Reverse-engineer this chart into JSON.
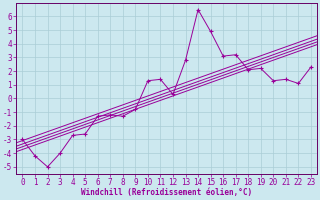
{
  "title": "",
  "xlabel": "Windchill (Refroidissement éolien,°C)",
  "ylabel": "",
  "bg_color": "#cce8ef",
  "grid_color": "#aacdd6",
  "line_color": "#990099",
  "spine_color": "#660066",
  "xlim": [
    -0.5,
    23.5
  ],
  "ylim": [
    -5.5,
    7.0
  ],
  "xticks": [
    0,
    1,
    2,
    3,
    4,
    5,
    6,
    7,
    8,
    9,
    10,
    11,
    12,
    13,
    14,
    15,
    16,
    17,
    18,
    19,
    20,
    21,
    22,
    23
  ],
  "yticks": [
    -5,
    -4,
    -3,
    -2,
    -1,
    0,
    1,
    2,
    3,
    4,
    5,
    6
  ],
  "scatter_x": [
    0,
    1,
    2,
    3,
    4,
    5,
    6,
    7,
    8,
    9,
    10,
    11,
    12,
    13,
    14,
    15,
    16,
    17,
    18,
    19,
    20,
    21,
    22,
    23
  ],
  "scatter_y": [
    -3.0,
    -4.2,
    -5.0,
    -4.0,
    -2.7,
    -2.6,
    -1.3,
    -1.2,
    -1.3,
    -0.8,
    1.3,
    1.4,
    0.3,
    2.8,
    6.5,
    4.9,
    3.1,
    3.2,
    2.1,
    2.2,
    1.3,
    1.4,
    1.1,
    2.3
  ],
  "reg_offsets": [
    0.35,
    0.1,
    -0.1,
    -0.3
  ],
  "tick_fontsize": 5.5,
  "xlabel_fontsize": 5.5
}
